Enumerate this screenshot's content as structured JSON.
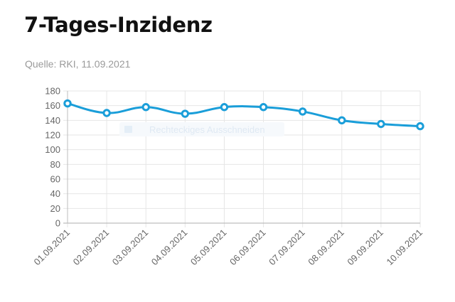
{
  "header": {
    "title": "7-Tages-Inzidenz",
    "source": "Quelle: RKI, 11.09.2021"
  },
  "overlay": {
    "label": "Rechteckiges Ausschneiden"
  },
  "colors": {
    "line": "#1a9ed9",
    "grid": "#e6e6e6",
    "axis": "#bdbdbd"
  },
  "chart_data": {
    "type": "line",
    "title": "",
    "xlabel": "",
    "ylabel": "",
    "ylim": [
      0,
      180
    ],
    "yticks": [
      0,
      20,
      40,
      60,
      80,
      100,
      120,
      140,
      160,
      180
    ],
    "grid": true,
    "categories": [
      "01.09.2021",
      "02.09.2021",
      "03.09.2021",
      "04.09.2021",
      "05.09.2021",
      "06.09.2021",
      "07.09.2021",
      "08.09.2021",
      "09.09.2021",
      "10.09.2021"
    ],
    "series": [
      {
        "values": [
          163,
          150,
          158,
          149,
          158,
          158,
          152,
          140,
          135,
          132
        ]
      }
    ]
  }
}
